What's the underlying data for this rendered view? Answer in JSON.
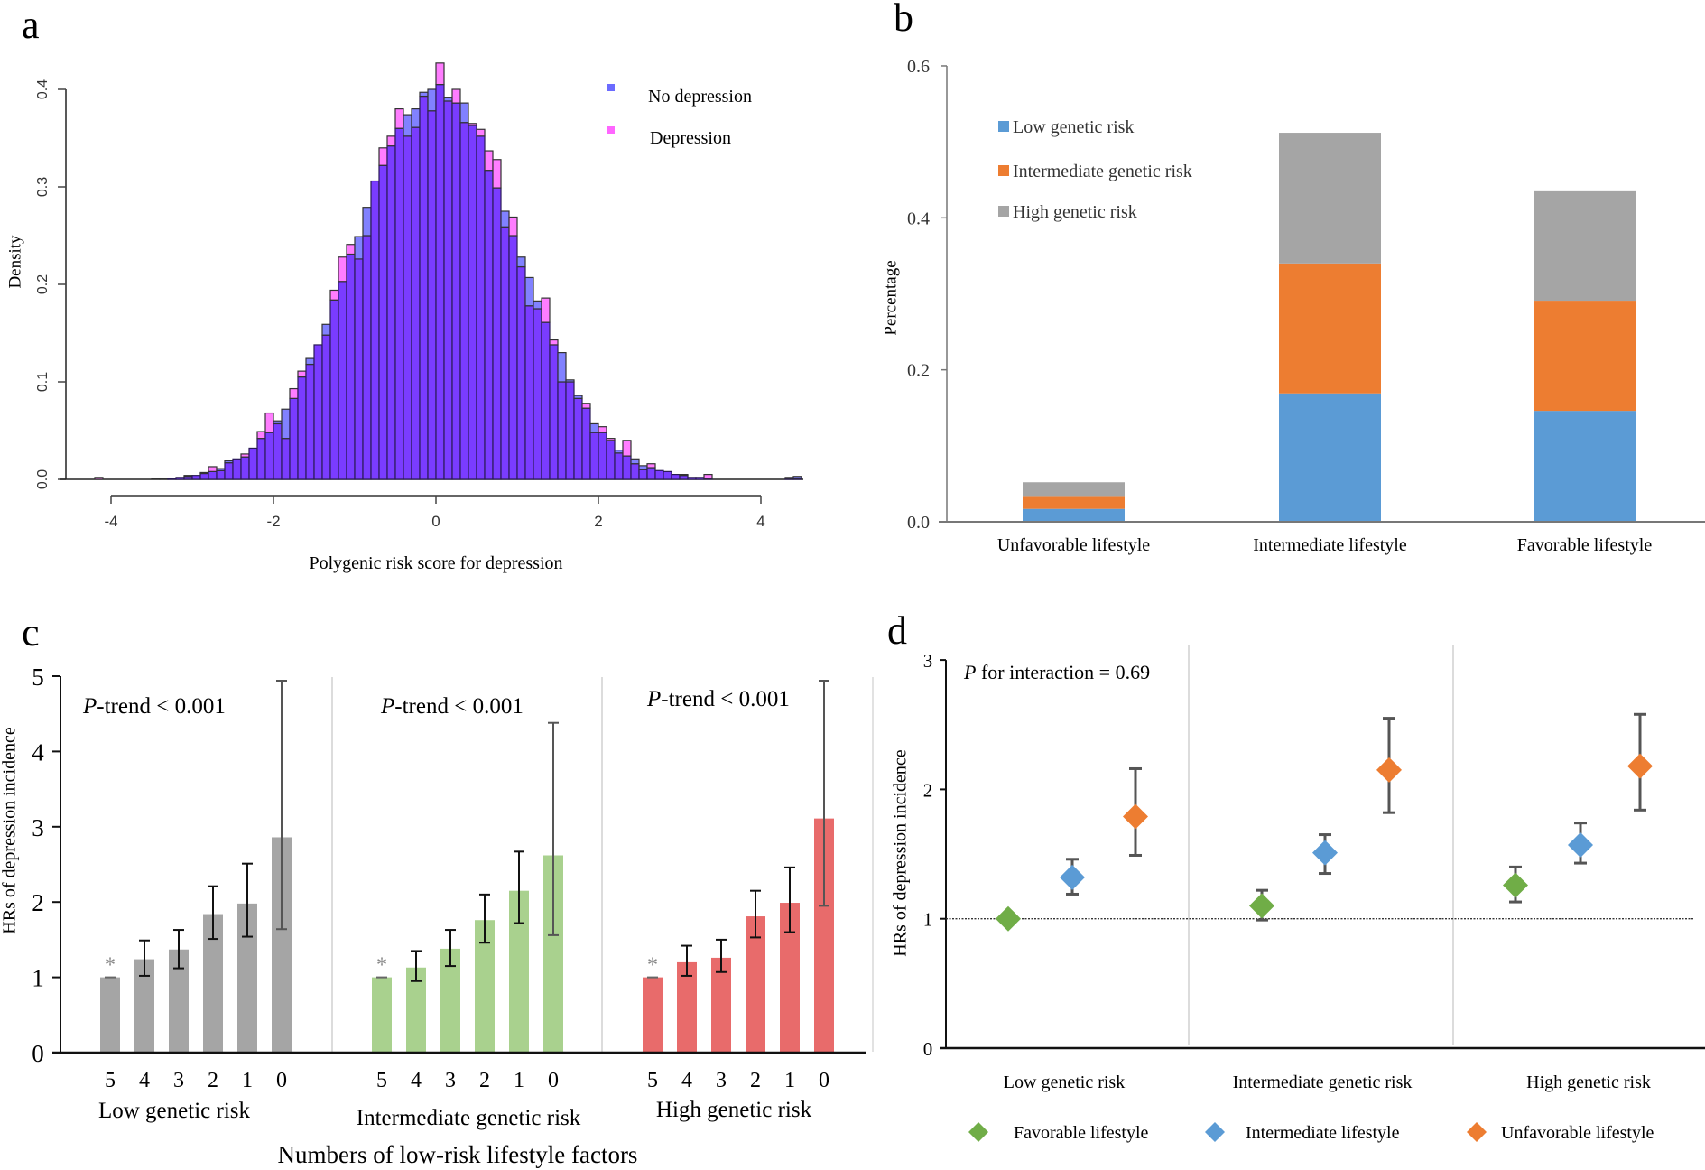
{
  "panels": {
    "a": {
      "letter": "a"
    },
    "b": {
      "letter": "b"
    },
    "c": {
      "letter": "c"
    },
    "d": {
      "letter": "d"
    }
  },
  "colors": {
    "hist_no_depression": "#6b6bff",
    "hist_depression": "#ff66ff",
    "hist_overlap": "#7a3cff",
    "low_risk": "#5b9bd5",
    "intermediate_risk": "#ed7d31",
    "high_risk": "#a5a5a5",
    "c_low": "#a5a5a5",
    "c_intermediate": "#a9d18e",
    "c_high": "#e86b6b",
    "d_favorable": "#70ad47",
    "d_intermediate": "#5b9bd5",
    "d_unfavorable": "#ed7d31"
  },
  "chart_data": [
    {
      "id": "a",
      "type": "histogram",
      "title": "",
      "xlabel": "Polygenic risk score for depression",
      "ylabel": "Density",
      "xlim": [
        -4.5,
        4.5
      ],
      "ylim": [
        0,
        0.4
      ],
      "xticks": [
        -4,
        -2,
        0,
        2,
        4
      ],
      "xtick_labels": [
        "-4",
        "-2",
        "0",
        "2",
        "4"
      ],
      "yticks": [
        0.0,
        0.1,
        0.2,
        0.3,
        0.4
      ],
      "ytick_labels": [
        "0.0",
        "0.1",
        "0.2",
        "0.3",
        "0.4"
      ],
      "bin_width": 0.1,
      "legend": {
        "position": "top-right",
        "entries": [
          "No depression",
          "Depression"
        ]
      },
      "bin_starts": [
        -4.2,
        -3.5,
        -3.4,
        -3.3,
        -3.2,
        -3.1,
        -3.0,
        -2.9,
        -2.8,
        -2.7,
        -2.6,
        -2.5,
        -2.4,
        -2.3,
        -2.2,
        -2.1,
        -2.0,
        -1.9,
        -1.8,
        -1.7,
        -1.6,
        -1.5,
        -1.4,
        -1.3,
        -1.2,
        -1.1,
        -1.0,
        -0.9,
        -0.8,
        -0.7,
        -0.6,
        -0.5,
        -0.4,
        -0.3,
        -0.2,
        -0.1,
        0.0,
        0.1,
        0.2,
        0.3,
        0.4,
        0.5,
        0.6,
        0.7,
        0.8,
        0.9,
        1.0,
        1.1,
        1.2,
        1.3,
        1.4,
        1.5,
        1.6,
        1.7,
        1.8,
        1.9,
        2.0,
        2.1,
        2.2,
        2.3,
        2.4,
        2.5,
        2.6,
        2.7,
        2.8,
        2.9,
        3.0,
        3.1,
        3.2,
        3.3,
        4.3,
        4.4
      ],
      "series": [
        {
          "name": "No depression",
          "values": [
            0.0,
            0.001,
            0.001,
            0.001,
            0.002,
            0.004,
            0.004,
            0.006,
            0.008,
            0.011,
            0.019,
            0.021,
            0.023,
            0.032,
            0.042,
            0.048,
            0.06,
            0.072,
            0.083,
            0.105,
            0.124,
            0.138,
            0.159,
            0.184,
            0.203,
            0.231,
            0.249,
            0.279,
            0.306,
            0.322,
            0.342,
            0.36,
            0.374,
            0.38,
            0.397,
            0.4,
            0.405,
            0.392,
            0.386,
            0.386,
            0.363,
            0.352,
            0.317,
            0.299,
            0.275,
            0.25,
            0.228,
            0.207,
            0.183,
            0.161,
            0.138,
            0.13,
            0.102,
            0.086,
            0.073,
            0.057,
            0.048,
            0.04,
            0.03,
            0.024,
            0.021,
            0.014,
            0.012,
            0.009,
            0.008,
            0.005,
            0.004,
            0.002,
            0.002,
            0.001,
            0.001,
            0.003
          ]
        },
        {
          "name": "Depression",
          "values": [
            0.002,
            0.0,
            0.0,
            0.001,
            0.002,
            0.003,
            0.004,
            0.007,
            0.013,
            0.009,
            0.017,
            0.021,
            0.026,
            0.032,
            0.049,
            0.068,
            0.057,
            0.042,
            0.093,
            0.111,
            0.118,
            0.138,
            0.148,
            0.194,
            0.228,
            0.241,
            0.226,
            0.25,
            0.306,
            0.34,
            0.352,
            0.38,
            0.352,
            0.361,
            0.393,
            0.378,
            0.427,
            0.388,
            0.4,
            0.366,
            0.365,
            0.359,
            0.337,
            0.328,
            0.259,
            0.269,
            0.218,
            0.178,
            0.175,
            0.186,
            0.143,
            0.1,
            0.1,
            0.083,
            0.078,
            0.048,
            0.054,
            0.042,
            0.027,
            0.04,
            0.016,
            0.01,
            0.016,
            0.009,
            0.008,
            0.005,
            0.005,
            0.002,
            0.002,
            0.005,
            0.002,
            0.001
          ]
        }
      ]
    },
    {
      "id": "b",
      "type": "bar",
      "stacked": true,
      "xlabel": "",
      "ylabel": "Percentage",
      "ylim": [
        0,
        0.6
      ],
      "yticks": [
        0.0,
        0.2,
        0.4,
        0.6
      ],
      "ytick_labels": [
        "0.0",
        "0.2",
        "0.4",
        "0.6"
      ],
      "categories": [
        "Unfavorable lifestyle",
        "Intermediate lifestyle",
        "Favorable lifestyle"
      ],
      "legend": {
        "position": "top-left",
        "entries": [
          "Low genetic risk",
          "Intermediate genetic risk",
          "High genetic risk"
        ]
      },
      "series": [
        {
          "name": "Low genetic risk",
          "values": [
            0.017,
            0.169,
            0.146
          ]
        },
        {
          "name": "Intermediate genetic risk",
          "values": [
            0.017,
            0.171,
            0.145
          ]
        },
        {
          "name": "High genetic risk",
          "values": [
            0.018,
            0.172,
            0.144
          ]
        }
      ]
    },
    {
      "id": "c",
      "type": "bar",
      "xlabel": "Numbers of low-risk lifestyle factors",
      "ylabel": "HRs of depression  incidence",
      "ylim": [
        0,
        5
      ],
      "yticks": [
        0,
        1,
        2,
        3,
        4,
        5
      ],
      "ytick_labels": [
        "0",
        "1",
        "2",
        "3",
        "4",
        "5"
      ],
      "categories": [
        "5",
        "4",
        "3",
        "2",
        "1",
        "0"
      ],
      "reference_marker": "*",
      "groups": [
        {
          "name": "Low genetic risk",
          "annotation_prefix": "P",
          "annotation_suffix": "-trend < 0.001",
          "values": [
            1.0,
            1.24,
            1.37,
            1.84,
            1.98,
            2.86
          ],
          "ci_low": [
            1.0,
            1.02,
            1.12,
            1.51,
            1.54,
            1.64
          ],
          "ci_high": [
            1.0,
            1.49,
            1.63,
            2.21,
            2.51,
            4.94
          ]
        },
        {
          "name": "Intermediate genetic risk",
          "annotation_prefix": "P",
          "annotation_suffix": "-trend < 0.001",
          "values": [
            1.0,
            1.13,
            1.38,
            1.76,
            2.15,
            2.62
          ],
          "ci_low": [
            1.0,
            0.95,
            1.15,
            1.46,
            1.72,
            1.56
          ],
          "ci_high": [
            1.0,
            1.35,
            1.63,
            2.1,
            2.67,
            4.38
          ]
        },
        {
          "name": "High genetic risk",
          "annotation_prefix": "P",
          "annotation_suffix": "-trend < 0.001",
          "values": [
            1.0,
            1.2,
            1.26,
            1.81,
            1.99,
            3.11
          ],
          "ci_low": [
            1.0,
            1.02,
            1.07,
            1.53,
            1.6,
            1.95
          ],
          "ci_high": [
            1.0,
            1.42,
            1.5,
            2.15,
            2.46,
            4.94
          ]
        }
      ]
    },
    {
      "id": "d",
      "type": "scatter",
      "xlabel": "",
      "ylabel": "HRs of depression incidence",
      "ylim": [
        0,
        3
      ],
      "yticks": [
        0,
        1,
        2,
        3
      ],
      "ytick_labels": [
        "0",
        "1",
        "2",
        "3"
      ],
      "reference_line": 1,
      "annotation_prefix": "P",
      "annotation_suffix": " for interaction = 0.69",
      "categories": [
        "Low genetic risk",
        "Intermediate genetic risk",
        "High genetic risk"
      ],
      "legend": {
        "position": "bottom",
        "entries": [
          "Favorable lifestyle",
          "Intermediate lifestyle",
          "Unfavorable lifestyle"
        ]
      },
      "series": [
        {
          "name": "Favorable lifestyle",
          "values": [
            1.0,
            1.1,
            1.26
          ],
          "ci_low": [
            1.0,
            0.99,
            1.13
          ],
          "ci_high": [
            1.0,
            1.22,
            1.4
          ]
        },
        {
          "name": "Intermediate lifestyle",
          "values": [
            1.32,
            1.51,
            1.57
          ],
          "ci_low": [
            1.19,
            1.35,
            1.43
          ],
          "ci_high": [
            1.46,
            1.65,
            1.74
          ]
        },
        {
          "name": "Unfavorable lifestyle",
          "values": [
            1.79,
            2.15,
            2.18
          ],
          "ci_low": [
            1.49,
            1.82,
            1.84
          ],
          "ci_high": [
            2.16,
            2.55,
            2.58
          ]
        }
      ]
    }
  ]
}
